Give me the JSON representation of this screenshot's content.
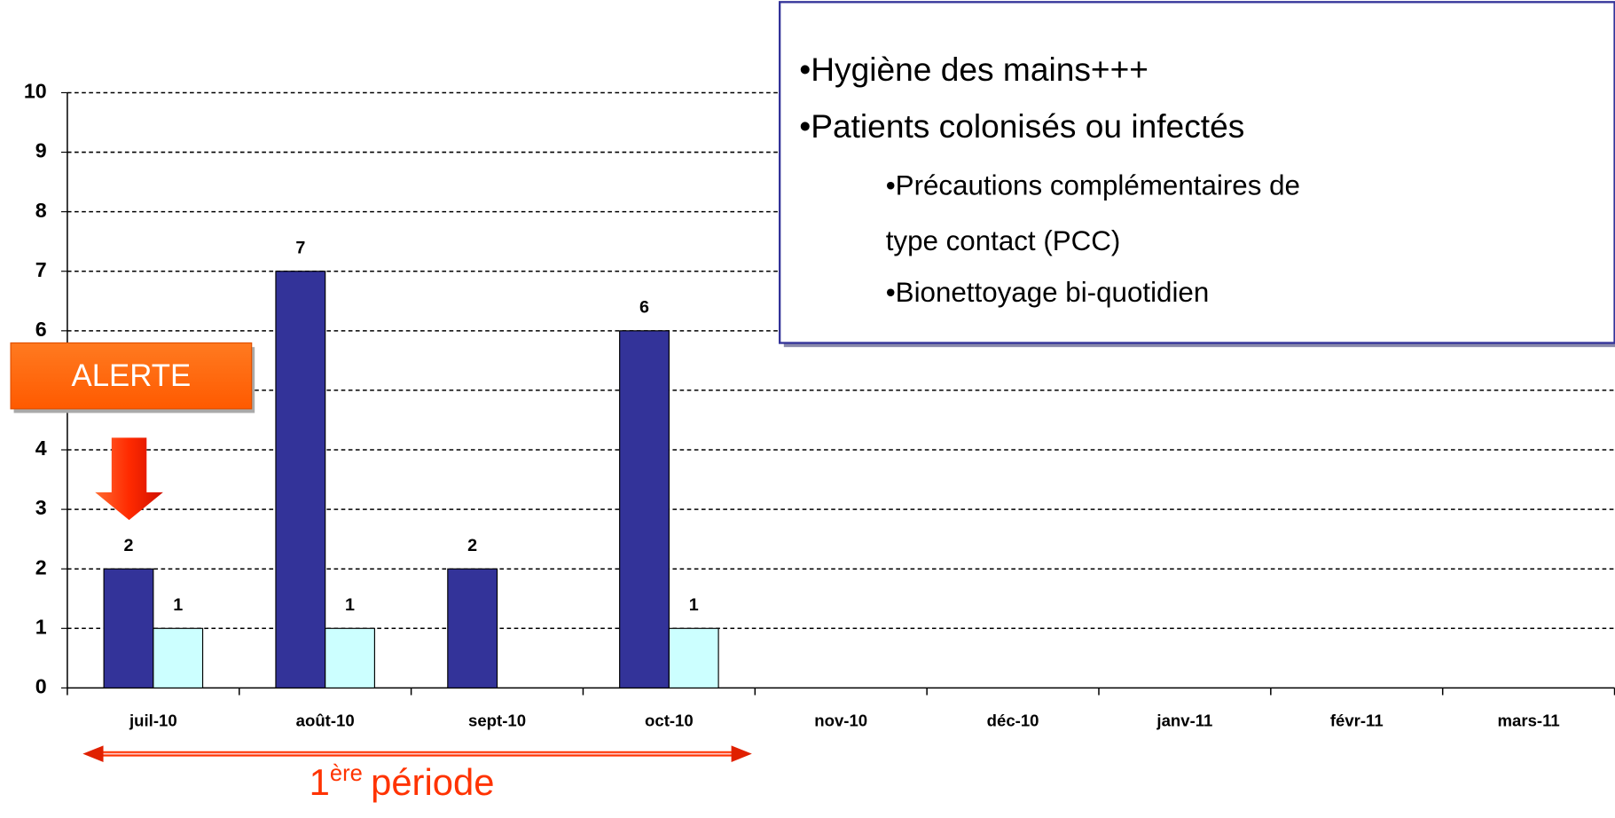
{
  "chart_data": {
    "type": "bar",
    "categories": [
      "juil-10",
      "août-10",
      "sept-10",
      "oct-10",
      "nov-10",
      "déc-10",
      "janv-11",
      "févr-11",
      "mars-11"
    ],
    "series": [
      {
        "color": "#333399",
        "values": [
          2,
          7,
          2,
          6,
          null,
          null,
          null,
          null,
          null
        ]
      },
      {
        "color": "#ccffff",
        "values": [
          1,
          1,
          null,
          1,
          null,
          null,
          null,
          null,
          null
        ]
      }
    ],
    "ylim": [
      0,
      10
    ],
    "yticks": [
      0,
      1,
      2,
      3,
      4,
      5,
      6,
      7,
      8,
      9,
      10
    ],
    "grid": true,
    "annotation_box": {
      "items": [
        "•Hygiène des mains+++",
        "•Patients colonisés ou infectés"
      ],
      "subitems": [
        "•Précautions complémentaires de",
        "type contact (PCC)",
        "•Bionettoyage bi-quotidien"
      ]
    },
    "alert_label": "ALERTE",
    "period_label": {
      "number": "1",
      "superscript": "ère",
      "text": "période"
    }
  }
}
